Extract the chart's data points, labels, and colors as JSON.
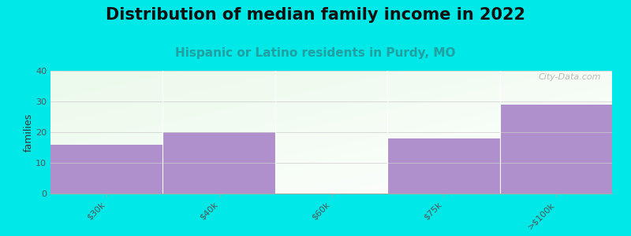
{
  "title": "Distribution of median family income in 2022",
  "subtitle": "Hispanic or Latino residents in Purdy, MO",
  "ylabel": "families",
  "categories": [
    "$30k",
    "$40k",
    "$60k",
    "$75k",
    ">$100k"
  ],
  "values": [
    16,
    20,
    0,
    18,
    29
  ],
  "bar_color": "#b090cc",
  "ylim": [
    0,
    40
  ],
  "yticks": [
    0,
    10,
    20,
    30,
    40
  ],
  "background_color": "#00e8e8",
  "plot_bg_color_top_right": "#e8f5ec",
  "plot_bg_color_bottom_left": "#ddf0dd",
  "plot_bg_white": "#f5fbf5",
  "title_fontsize": 15,
  "subtitle_fontsize": 11,
  "subtitle_color": "#20a0a0",
  "ylabel_fontsize": 9,
  "watermark": "City-Data.com",
  "tick_label_fontsize": 8,
  "tick_label_color": "#555555"
}
